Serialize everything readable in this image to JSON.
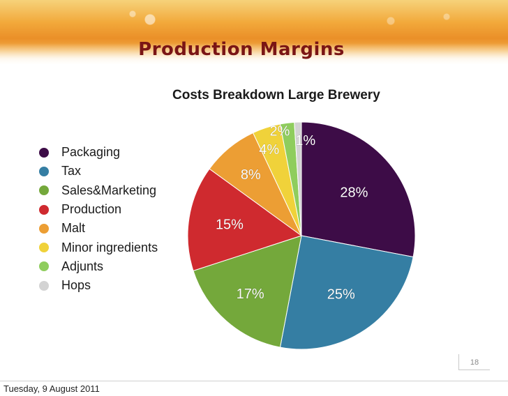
{
  "slide": {
    "title": "Production Margins",
    "page_number": "18",
    "footer_date": "Tuesday, 9 August 2011"
  },
  "chart_data": {
    "type": "pie",
    "title": "Costs Breakdown Large Brewery",
    "categories": [
      "Packaging",
      "Tax",
      "Sales&Marketing",
      "Production",
      "Malt",
      "Minor ingredients",
      "Adjunts",
      "Hops"
    ],
    "values": [
      28,
      25,
      17,
      15,
      8,
      4,
      2,
      1
    ],
    "labels": [
      "28%",
      "25%",
      "17%",
      "15%",
      "8%",
      "4%",
      "2%",
      "1%"
    ],
    "colors": [
      "#3d0c47",
      "#357ea3",
      "#74a83b",
      "#cf2a2f",
      "#ec9e34",
      "#f0d23a",
      "#8fcd5d",
      "#d3d3d3"
    ],
    "legend_position": "left"
  },
  "legend": {
    "items": [
      {
        "label": "Packaging",
        "color": "#3d0c47"
      },
      {
        "label": "Tax",
        "color": "#357ea3"
      },
      {
        "label": "Sales&Marketing",
        "color": "#74a83b"
      },
      {
        "label": "Production",
        "color": "#cf2a2f"
      },
      {
        "label": "Malt",
        "color": "#ec9e34"
      },
      {
        "label": "Minor ingredients",
        "color": "#f0d23a"
      },
      {
        "label": "Adjunts",
        "color": "#8fcd5d"
      },
      {
        "label": "Hops",
        "color": "#d3d3d3"
      }
    ]
  }
}
